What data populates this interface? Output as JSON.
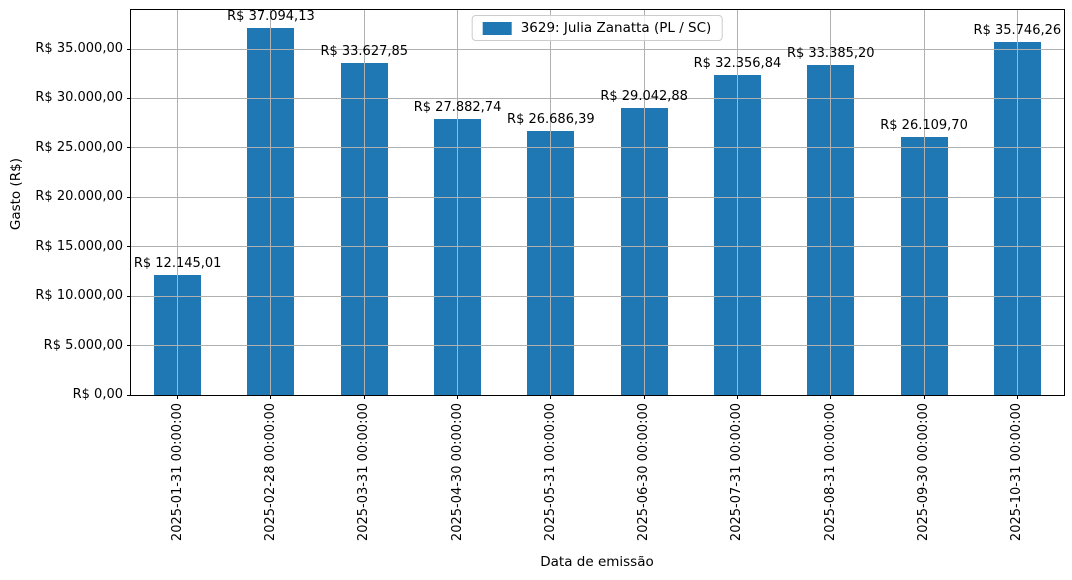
{
  "chart_data": {
    "type": "bar",
    "title": "",
    "xlabel": "Data de emissão",
    "ylabel": "Gasto (R$)",
    "legend_label": "3629: Julia Zanatta (PL / SC)",
    "legend_position": "upper center",
    "categories": [
      "2025-01-31 00:00:00",
      "2025-02-28 00:00:00",
      "2025-03-31 00:00:00",
      "2025-04-30 00:00:00",
      "2025-05-31 00:00:00",
      "2025-06-30 00:00:00",
      "2025-07-31 00:00:00",
      "2025-08-31 00:00:00",
      "2025-09-30 00:00:00",
      "2025-10-31 00:00:00"
    ],
    "values": [
      12145.01,
      37094.13,
      33627.85,
      27882.74,
      26686.39,
      29042.88,
      32356.84,
      33385.2,
      26109.7,
      35746.26
    ],
    "bar_labels": [
      "R$ 12.145,01",
      "R$ 37.094,13",
      "R$ 33.627,85",
      "R$ 27.882,74",
      "R$ 26.686,39",
      "R$ 29.042,88",
      "R$ 32.356,84",
      "R$ 33.385,20",
      "R$ 26.109,70",
      "R$ 35.746,26"
    ],
    "ytick_values": [
      0,
      5000,
      10000,
      15000,
      20000,
      25000,
      30000,
      35000
    ],
    "ytick_labels": [
      "R$ 0,00",
      "R$ 5.000,00",
      "R$ 10.000,00",
      "R$ 15.000,00",
      "R$ 20.000,00",
      "R$ 25.000,00",
      "R$ 30.000,00",
      "R$ 35.000,00"
    ],
    "ylim": [
      0,
      38948.84
    ],
    "grid": true,
    "colors": {
      "bar": "#1f77b4",
      "grid": "#b0b0b0",
      "spine": "#000000",
      "legend_edge": "#cccccc"
    }
  }
}
